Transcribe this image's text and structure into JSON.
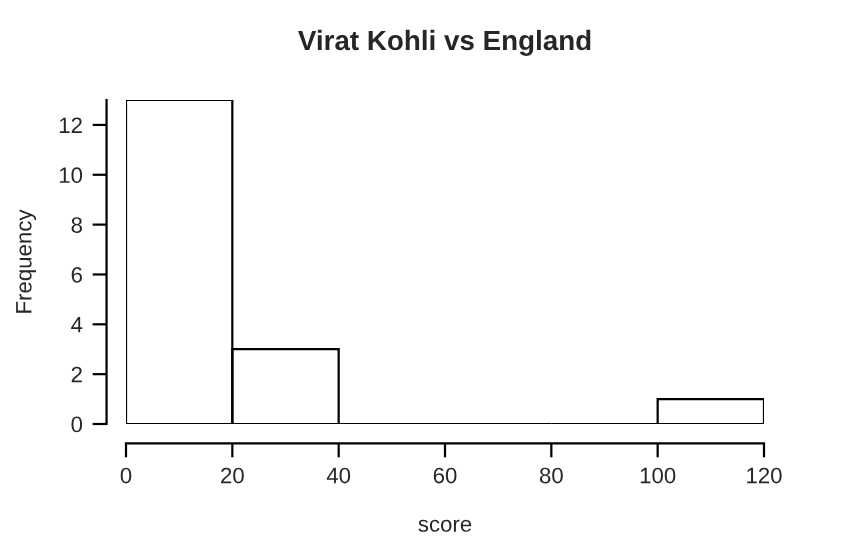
{
  "chart_data": {
    "type": "histogram",
    "title": "Virat Kohli vs England",
    "xlabel": "score",
    "ylabel": "Frequency",
    "bins": [
      0,
      20,
      40,
      60,
      80,
      100,
      120
    ],
    "values": [
      13,
      3,
      0,
      0,
      0,
      1
    ],
    "color": "#000000",
    "xlim": [
      0,
      120
    ],
    "ylim": [
      0,
      13
    ],
    "xticks": [
      0,
      20,
      40,
      60,
      80,
      100,
      120
    ],
    "yticks": [
      0,
      2,
      4,
      6,
      8,
      10,
      12
    ]
  }
}
